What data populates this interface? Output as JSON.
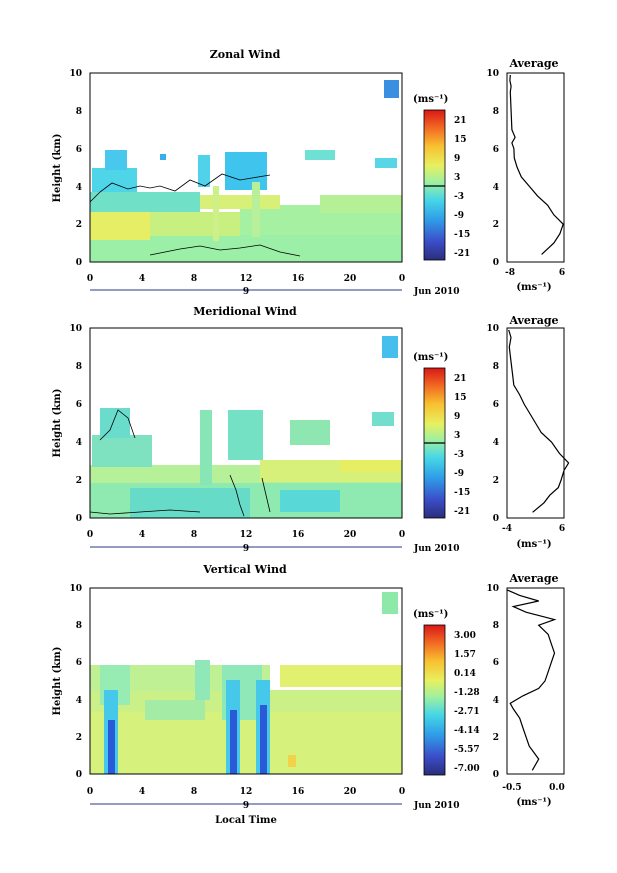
{
  "panels": [
    {
      "id": "zonal",
      "title": "Zonal Wind",
      "ylabel": "Height (km)",
      "yticks": [
        "0",
        "2",
        "4",
        "6",
        "8",
        "10"
      ],
      "xticks": [
        "0",
        "4",
        "8",
        "12",
        "16",
        "20",
        "0"
      ],
      "day": "9",
      "date": "Jun 2010",
      "unit_html": "(ms⁻¹)",
      "colorbar_ticks": [
        "21",
        "15",
        "9",
        "3",
        "-3",
        "-9",
        "-15",
        "-21"
      ],
      "profile_title": "Average",
      "profile_xticks": [
        "-8",
        "6"
      ],
      "profile_xlabel": "(ms⁻¹)",
      "profile_yticks": [
        "0",
        "2",
        "4",
        "6",
        "8",
        "10"
      ]
    },
    {
      "id": "meridional",
      "title": "Meridional Wind",
      "ylabel": "Height (km)",
      "yticks": [
        "0",
        "2",
        "4",
        "6",
        "8",
        "10"
      ],
      "xticks": [
        "0",
        "4",
        "8",
        "12",
        "16",
        "20",
        "0"
      ],
      "day": "9",
      "date": "Jun 2010",
      "unit_html": "(ms⁻¹)",
      "colorbar_ticks": [
        "21",
        "15",
        "9",
        "3",
        "-3",
        "-9",
        "-15",
        "-21"
      ],
      "profile_title": "Average",
      "profile_xticks": [
        "-4",
        "6"
      ],
      "profile_xlabel": "(ms⁻¹)",
      "profile_yticks": [
        "0",
        "2",
        "4",
        "6",
        "8",
        "10"
      ]
    },
    {
      "id": "vertical",
      "title": "Vertical Wind",
      "ylabel": "Height (km)",
      "yticks": [
        "0",
        "2",
        "4",
        "6",
        "8",
        "10"
      ],
      "xticks": [
        "0",
        "4",
        "8",
        "12",
        "16",
        "20",
        "0"
      ],
      "day": "9",
      "date": "Jun 2010",
      "unit_html": "(ms⁻¹)",
      "colorbar_ticks": [
        "3.00",
        "1.57",
        "0.14",
        "-1.28",
        "-2.71",
        "-4.14",
        "-5.57",
        "-7.00"
      ],
      "profile_title": "Average",
      "profile_xticks": [
        "-0.5",
        "0.0"
      ],
      "profile_xlabel": "(ms⁻¹)",
      "profile_yticks": [
        "0",
        "2",
        "4",
        "6",
        "8",
        "10"
      ]
    }
  ],
  "xlabel": "Local Time",
  "chart_data": [
    {
      "type": "heatmap",
      "title": "Zonal Wind",
      "xlabel": "Local Time",
      "ylabel": "Height (km)",
      "xlim": [
        0,
        24
      ],
      "ylim": [
        0,
        10
      ],
      "clim": [
        -21,
        21
      ],
      "zero_contour": true,
      "approx_field": {
        "dominant_value_by_height_km": [
          [
            0.5,
            3
          ],
          [
            1.5,
            4
          ],
          [
            2.5,
            3
          ],
          [
            3.5,
            -6
          ],
          [
            4.5,
            -10
          ],
          [
            5.5,
            -12
          ]
        ],
        "upper_patch": {
          "x_range": [
            22.5,
            23.8
          ],
          "y_range": [
            9.0,
            9.9
          ],
          "value": -14
        }
      },
      "profile": {
        "title": "Average",
        "xlim": [
          -8,
          6
        ],
        "height_km": [
          0.4,
          1.0,
          1.5,
          2.0,
          2.5,
          3.0,
          3.5,
          4.0,
          4.5,
          5.0,
          5.5,
          6.0,
          6.3,
          6.6,
          7.0,
          9.0,
          9.3,
          9.6,
          9.9
        ],
        "value": [
          0.5,
          3.5,
          5.0,
          5.8,
          3.5,
          2.0,
          -0.5,
          -2.5,
          -4.5,
          -5.5,
          -6.2,
          -6.3,
          -6.8,
          -6.0,
          -6.8,
          -7.2,
          -7.0,
          -7.3,
          -7.2
        ]
      }
    },
    {
      "type": "heatmap",
      "title": "Meridional Wind",
      "xlabel": "Local Time",
      "ylabel": "Height (km)",
      "xlim": [
        0,
        24
      ],
      "ylim": [
        0,
        10
      ],
      "clim": [
        -21,
        21
      ],
      "zero_contour": true,
      "approx_field": {
        "dominant_value_by_height_km": [
          [
            0.5,
            -3
          ],
          [
            1.5,
            -1
          ],
          [
            2.5,
            2
          ],
          [
            3.5,
            -2
          ],
          [
            4.5,
            -5
          ],
          [
            5.5,
            -6
          ]
        ],
        "upper_patch": {
          "x_range": [
            22.5,
            23.8
          ],
          "y_range": [
            8.7,
            9.9
          ],
          "value": -14
        }
      },
      "profile": {
        "title": "Average",
        "xlim": [
          -4,
          6
        ],
        "height_km": [
          0.3,
          0.8,
          1.2,
          1.6,
          2.0,
          2.5,
          2.9,
          3.4,
          4.0,
          4.5,
          5.0,
          5.5,
          6.0,
          6.5,
          7.0,
          7.5,
          8.5,
          9.0,
          9.5,
          9.9
        ],
        "value": [
          0.5,
          2.5,
          3.5,
          5.0,
          5.5,
          6.0,
          6.8,
          5.2,
          3.8,
          2.0,
          1.0,
          0.0,
          -1.0,
          -1.8,
          -2.8,
          -3.0,
          -3.4,
          -3.6,
          -3.3,
          -3.7
        ]
      }
    },
    {
      "type": "heatmap",
      "title": "Vertical Wind",
      "xlabel": "Local Time",
      "ylabel": "Height (km)",
      "xlim": [
        0,
        24
      ],
      "ylim": [
        0,
        10
      ],
      "clim": [
        -7.0,
        3.0
      ],
      "approx_field": {
        "dominant_value_by_height_km": [
          [
            1.0,
            0.3
          ],
          [
            2.0,
            0.2
          ],
          [
            3.0,
            0.0
          ],
          [
            4.0,
            -0.5
          ],
          [
            5.0,
            -0.8
          ]
        ],
        "downdraft_columns_hours": [
          2,
          11,
          13.5
        ],
        "downdraft_value": -6.5,
        "upper_patch": {
          "x_range": [
            22.5,
            23.8
          ],
          "y_range": [
            8.7,
            9.9
          ],
          "value": -0.5
        }
      },
      "profile": {
        "title": "Average",
        "xlim": [
          -0.8,
          0.1
        ],
        "height_km": [
          0.2,
          0.8,
          1.5,
          2.0,
          2.5,
          3.0,
          3.5,
          3.8,
          4.2,
          4.6,
          5.0,
          5.5,
          6.0,
          6.5,
          7.0,
          7.5,
          8.0,
          8.3,
          8.7,
          9.0,
          9.3,
          9.6,
          9.9
        ],
        "value": [
          -0.4,
          -0.3,
          -0.45,
          -0.5,
          -0.55,
          -0.6,
          -0.7,
          -0.75,
          -0.55,
          -0.3,
          -0.2,
          -0.15,
          -0.1,
          -0.05,
          -0.1,
          -0.15,
          -0.3,
          -0.05,
          -0.5,
          -0.7,
          -0.3,
          -0.6,
          -0.8
        ]
      }
    }
  ]
}
